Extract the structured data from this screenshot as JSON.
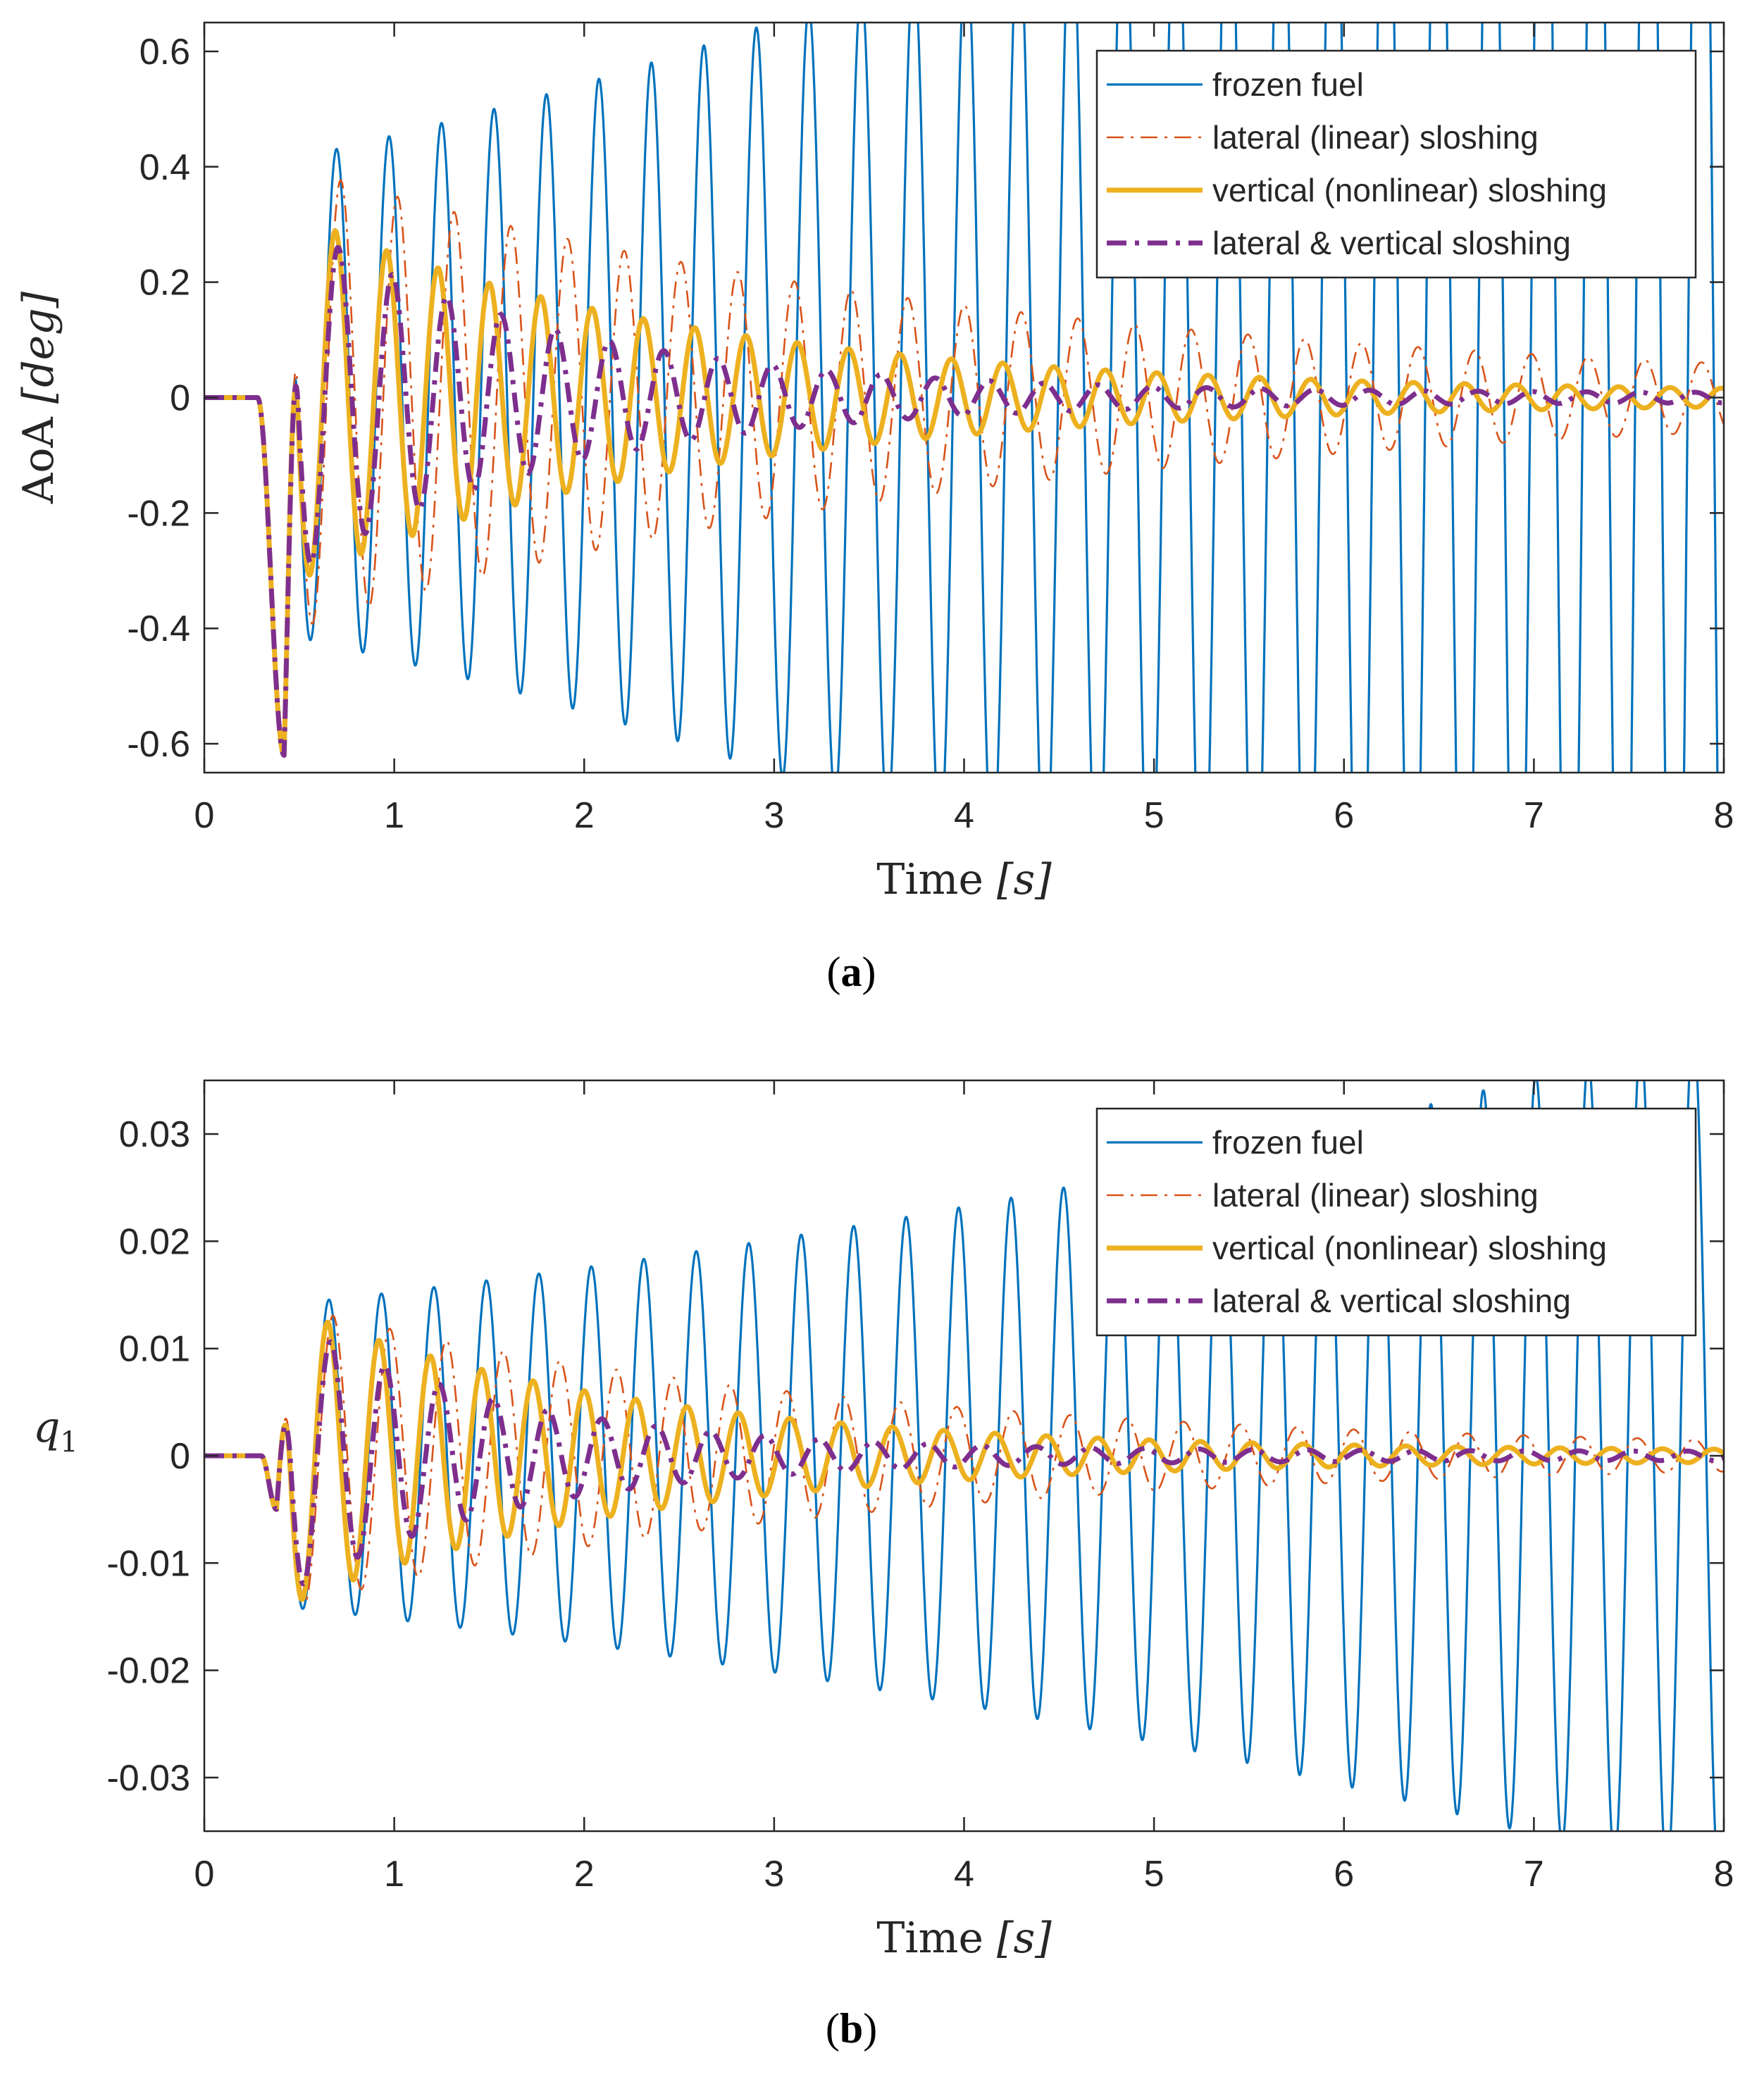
{
  "chart_data": [
    {
      "type": "line",
      "panel_caption": {
        "open": "(",
        "letter": "a",
        "close": ")"
      },
      "xlabel": {
        "text": "Time ",
        "unit": "[s]"
      },
      "ylabel": {
        "text": "AoA ",
        "unit": "[deg]"
      },
      "xlim": [
        0,
        8
      ],
      "ylim": [
        -0.65,
        0.65
      ],
      "xticks": [
        0,
        1,
        2,
        3,
        4,
        5,
        6,
        7,
        8
      ],
      "yticks": [
        -0.6,
        -0.4,
        -0.2,
        0,
        0.2,
        0.4,
        0.6
      ],
      "ytick_labels": [
        "-0.6",
        "-0.4",
        "-0.2",
        "0",
        "0.2",
        "0.4",
        "0.6"
      ],
      "grid": false,
      "legend_position": "top-right",
      "series": [
        {
          "name": "frozen fuel",
          "color": "#0072BD",
          "style": "solid",
          "t0": 0.28,
          "frequency_hz": 3.62,
          "initial_amplitude": -0.62,
          "points": [
            [
              0.42,
              -0.62
            ],
            [
              0.58,
              0.41
            ],
            [
              0.72,
              -0.41
            ],
            [
              0.86,
              0.42
            ],
            [
              1.0,
              -0.43
            ],
            [
              1.12,
              0.44
            ],
            [
              1.55,
              -0.47
            ],
            [
              1.95,
              0.49
            ],
            [
              2.5,
              -0.53
            ],
            [
              3.0,
              0.58
            ],
            [
              3.5,
              -0.62
            ],
            [
              3.9,
              0.65
            ]
          ]
        },
        {
          "name": "lateral (linear) sloshing",
          "color": "#D95319",
          "style": "dashdot",
          "points": [
            [
              0.42,
              -0.62
            ],
            [
              0.58,
              0.4
            ],
            [
              0.72,
              -0.38
            ],
            [
              0.86,
              0.35
            ],
            [
              1.0,
              -0.32
            ],
            [
              1.12,
              0.31
            ],
            [
              2.0,
              0.22
            ],
            [
              3.0,
              0.12
            ],
            [
              4.0,
              0.08
            ],
            [
              5.0,
              0.05
            ],
            [
              6.0,
              0.045
            ],
            [
              7.0,
              0.04
            ],
            [
              8.0,
              -0.05
            ]
          ]
        },
        {
          "name": "vertical (nonlinear) sloshing",
          "color": "#EDB120",
          "style": "solid-thick",
          "points": [
            [
              0.42,
              -0.62
            ],
            [
              0.58,
              0.32
            ],
            [
              0.72,
              -0.29
            ],
            [
              0.86,
              0.24
            ],
            [
              1.0,
              -0.24
            ],
            [
              1.12,
              0.2
            ],
            [
              1.4,
              0.17
            ],
            [
              1.68,
              0.14
            ],
            [
              2.0,
              0.12
            ],
            [
              2.5,
              0.08
            ],
            [
              3.0,
              0.045
            ],
            [
              4.0,
              0.02
            ],
            [
              5.0,
              0.015
            ],
            [
              8.0,
              -0.01
            ]
          ]
        },
        {
          "name": "lateral & vertical sloshing",
          "color": "#7E2F8E",
          "style": "dashdot-thick",
          "points": [
            [
              0.42,
              -0.62
            ],
            [
              0.58,
              0.31
            ],
            [
              0.72,
              -0.27
            ],
            [
              0.86,
              0.19
            ],
            [
              1.0,
              -0.18
            ],
            [
              1.12,
              0.12
            ],
            [
              1.4,
              0.08
            ],
            [
              2.0,
              0.05
            ],
            [
              2.5,
              0.03
            ],
            [
              3.0,
              0.015
            ],
            [
              4.0,
              0.01
            ],
            [
              5.0,
              0.02
            ],
            [
              6.0,
              -0.02
            ],
            [
              8.0,
              -0.01
            ]
          ]
        }
      ]
    },
    {
      "type": "line",
      "panel_caption": {
        "open": "(",
        "letter": "b",
        "close": ")"
      },
      "xlabel": {
        "text": "Time ",
        "unit": "[s]"
      },
      "ylabel": {
        "text": "q",
        "unit": "1"
      },
      "xlim": [
        0,
        8
      ],
      "ylim": [
        -0.035,
        0.035
      ],
      "xticks": [
        0,
        1,
        2,
        3,
        4,
        5,
        6,
        7,
        8
      ],
      "yticks": [
        -0.03,
        -0.02,
        -0.01,
        0,
        0.01,
        0.02,
        0.03
      ],
      "ytick_labels": [
        "-0.03",
        "-0.02",
        "-0.01",
        "0",
        "0.01",
        "0.02",
        "0.03"
      ],
      "grid": false,
      "legend_position": "top-right",
      "series": [
        {
          "name": "frozen fuel",
          "color": "#0072BD",
          "style": "solid",
          "t0": 0.3,
          "frequency_hz": 3.62,
          "initial_amplitude": -0.005,
          "points": [
            [
              0.38,
              -0.005
            ],
            [
              0.5,
              0.014
            ],
            [
              0.62,
              -0.017
            ],
            [
              0.76,
              0.019
            ],
            [
              0.9,
              -0.019
            ],
            [
              1.04,
              0.019
            ],
            [
              1.5,
              0.021
            ],
            [
              2.0,
              -0.022
            ],
            [
              2.5,
              0.024
            ],
            [
              3.0,
              -0.026
            ],
            [
              3.5,
              0.027
            ],
            [
              4.0,
              0.029
            ],
            [
              4.5,
              -0.031
            ],
            [
              5.0,
              -0.033
            ],
            [
              5.3,
              -0.035
            ]
          ]
        },
        {
          "name": "lateral (linear) sloshing",
          "color": "#D95319",
          "style": "dashdot",
          "points": [
            [
              0.38,
              -0.005
            ],
            [
              0.5,
              0.014
            ],
            [
              0.62,
              -0.015
            ],
            [
              0.76,
              0.016
            ],
            [
              0.9,
              -0.015
            ],
            [
              1.04,
              0.014
            ],
            [
              1.5,
              0.011
            ],
            [
              2.0,
              -0.009
            ],
            [
              2.5,
              0.007
            ],
            [
              3.0,
              0.006
            ],
            [
              3.5,
              -0.004
            ],
            [
              4.0,
              0.003
            ],
            [
              5.0,
              -0.0015
            ],
            [
              6.0,
              0.001
            ],
            [
              7.0,
              0.001
            ],
            [
              8.0,
              0.001
            ]
          ]
        },
        {
          "name": "vertical (nonlinear) sloshing",
          "color": "#EDB120",
          "style": "solid-thick",
          "points": [
            [
              0.38,
              -0.005
            ],
            [
              0.5,
              0.014
            ],
            [
              0.62,
              -0.016
            ],
            [
              0.76,
              0.015
            ],
            [
              0.9,
              -0.014
            ],
            [
              1.04,
              0.013
            ],
            [
              1.3,
              0.011
            ],
            [
              1.55,
              0.009
            ],
            [
              2.0,
              -0.007
            ],
            [
              2.5,
              0.005
            ],
            [
              3.0,
              0.0035
            ],
            [
              4.0,
              0.0015
            ],
            [
              5.0,
              0.001
            ],
            [
              8.0,
              0.0005
            ]
          ]
        },
        {
          "name": "lateral & vertical sloshing",
          "color": "#7E2F8E",
          "style": "dashdot-thick",
          "points": [
            [
              0.38,
              -0.005
            ],
            [
              0.5,
              0.013
            ],
            [
              0.62,
              -0.015
            ],
            [
              0.76,
              0.012
            ],
            [
              0.9,
              -0.008
            ],
            [
              1.04,
              0.009
            ],
            [
              1.3,
              0.006
            ],
            [
              1.55,
              0.004
            ],
            [
              2.0,
              0.002
            ],
            [
              3.0,
              0.001
            ],
            [
              4.0,
              0.001
            ],
            [
              6.0,
              0.0005
            ],
            [
              8.0,
              0.0
            ]
          ]
        }
      ]
    }
  ]
}
